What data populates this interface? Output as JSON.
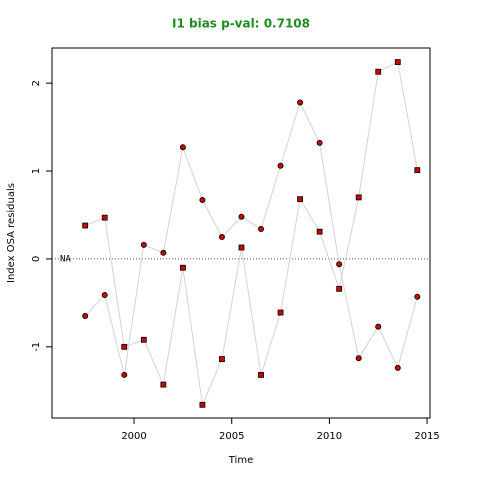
{
  "chart_data": {
    "type": "line",
    "title": "I1 bias p-val: 0.7108",
    "title_color": "#228b22",
    "xlabel": "Time",
    "ylabel": "Index OSA residuals",
    "annotation": "NA",
    "hline": 0,
    "x": [
      1997.5,
      1998.5,
      1999.5,
      2000.5,
      2001.5,
      2002.5,
      2003.5,
      2004.5,
      2005.5,
      2006.5,
      2007.5,
      2008.5,
      2009.5,
      2010.5,
      2011.5,
      2012.5,
      2013.5,
      2014.5
    ],
    "series": [
      {
        "color": "#cc0000",
        "line_color": "#d3d3d3",
        "marker": "square",
        "values": [
          0.38,
          0.47,
          -1.0,
          -0.92,
          -1.43,
          -0.1,
          -1.66,
          -1.14,
          0.13,
          -1.32,
          -0.61,
          0.68,
          0.31,
          -0.34,
          0.7,
          2.13,
          2.24,
          1.01
        ]
      },
      {
        "color": "#cc0000",
        "line_color": "#d3d3d3",
        "marker": "circle",
        "values": [
          -0.65,
          -0.41,
          -1.32,
          0.16,
          0.07,
          1.27,
          0.67,
          0.25,
          0.48,
          0.34,
          1.06,
          1.78,
          1.32,
          -0.06,
          -1.13,
          -0.77,
          -1.24,
          -0.43
        ]
      }
    ],
    "xlim": [
      1995.8,
      2015.15
    ],
    "ylim": [
      -1.81,
      2.4
    ],
    "xticks": [
      2000,
      2005,
      2010,
      2015
    ],
    "yticks": [
      -1,
      0,
      1,
      2
    ]
  }
}
